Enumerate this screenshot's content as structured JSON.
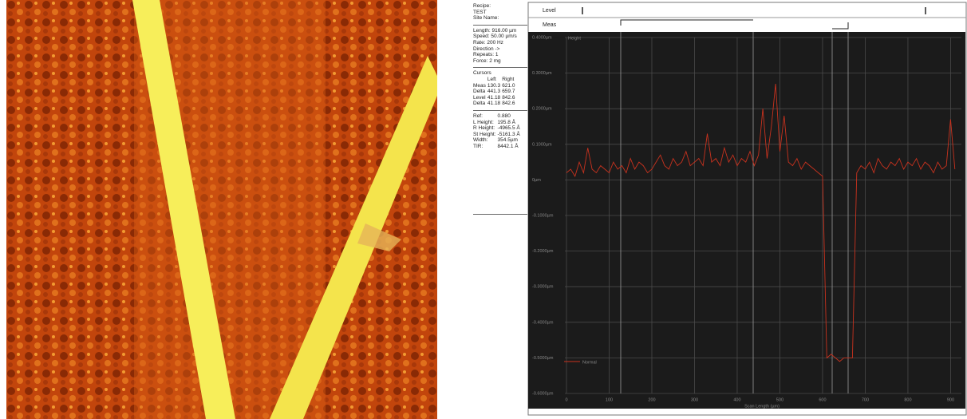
{
  "sidebar": {
    "recipe": [
      "Recipe:",
      "TEST",
      "Site Name:"
    ],
    "scan": [
      "Length: 916.00 µm",
      "Speed: 50.00 µm/s",
      "Rate: 200 Hz",
      "Direction ->",
      "Repeats: 1",
      "Force: 2 mg"
    ],
    "cursors": {
      "title": "Cursors",
      "header": [
        "Left",
        "Right"
      ],
      "rows": [
        [
          "Meas",
          "130.3",
          "621.0"
        ],
        [
          "Delta",
          "441.3",
          "659.7"
        ],
        [
          "Level",
          "41.18",
          "842.6"
        ],
        [
          "Delta",
          "41.18",
          "842.6"
        ]
      ]
    },
    "results": [
      [
        "Ref:",
        "0.880"
      ],
      [
        "L Height:",
        "195.8 Å"
      ],
      [
        "R Height:",
        "-4965.5 Å"
      ],
      [
        "St Height:",
        "-5161.3 Å"
      ],
      [
        "Width:",
        "354.5µm"
      ],
      [
        "TIR:",
        "8442.1 Å"
      ]
    ]
  },
  "header": {
    "level": "Level",
    "meas": "Meas"
  },
  "chart_data": {
    "type": "line",
    "y_label": "Height",
    "x_label": "Scan Length (µm)",
    "xlim": [
      0,
      916
    ],
    "xticks": [
      0,
      100,
      200,
      300,
      400,
      500,
      600,
      700,
      800,
      900
    ],
    "ylim": [
      -0.6,
      0.4
    ],
    "yticks": [
      {
        "value": 0.4,
        "label": "0.4000µm"
      },
      {
        "value": 0.3,
        "label": "0.3000µm"
      },
      {
        "value": 0.2,
        "label": "0.2000µm"
      },
      {
        "value": 0.1,
        "label": "0.1000µm"
      },
      {
        "value": 0,
        "label": "0µm"
      },
      {
        "value": -0.1,
        "label": "-0.1000µm"
      },
      {
        "value": -0.2,
        "label": "-0.2000µm"
      },
      {
        "value": -0.3,
        "label": "-0.3000µm"
      },
      {
        "value": -0.4,
        "label": "-0.4000µm"
      },
      {
        "value": -0.5,
        "label": "-0.5000µm"
      },
      {
        "value": -0.6,
        "label": "-0.6000µm"
      }
    ],
    "grid": true,
    "x": [
      0,
      10,
      20,
      30,
      40,
      50,
      60,
      70,
      80,
      90,
      100,
      110,
      120,
      130,
      140,
      150,
      160,
      170,
      180,
      190,
      200,
      210,
      220,
      230,
      240,
      250,
      260,
      270,
      280,
      290,
      300,
      310,
      320,
      330,
      340,
      350,
      360,
      370,
      380,
      390,
      400,
      410,
      420,
      430,
      440,
      450,
      460,
      470,
      480,
      490,
      500,
      510,
      520,
      530,
      540,
      550,
      560,
      570,
      580,
      590,
      600,
      610,
      620,
      630,
      640,
      650,
      660,
      670,
      680,
      690,
      700,
      710,
      720,
      730,
      740,
      750,
      760,
      770,
      780,
      790,
      800,
      810,
      820,
      830,
      840,
      850,
      860,
      870,
      880,
      890,
      900,
      910
    ],
    "series": [
      {
        "name": "Normal",
        "color": "#c8321e",
        "values": [
          0.02,
          0.03,
          0.01,
          0.05,
          0.02,
          0.09,
          0.03,
          0.02,
          0.04,
          0.03,
          0.02,
          0.05,
          0.03,
          0.04,
          0.02,
          0.06,
          0.03,
          0.05,
          0.04,
          0.02,
          0.03,
          0.05,
          0.07,
          0.04,
          0.03,
          0.06,
          0.04,
          0.05,
          0.08,
          0.04,
          0.05,
          0.06,
          0.04,
          0.13,
          0.05,
          0.06,
          0.04,
          0.09,
          0.05,
          0.07,
          0.04,
          0.06,
          0.05,
          0.08,
          0.04,
          0.07,
          0.2,
          0.06,
          0.15,
          0.27,
          0.08,
          0.18,
          0.05,
          0.04,
          0.06,
          0.03,
          0.05,
          0.04,
          0.03,
          0.02,
          0.01,
          -0.5,
          -0.49,
          -0.5,
          -0.51,
          -0.5,
          -0.5,
          -0.5,
          0.02,
          0.04,
          0.03,
          0.05,
          0.02,
          0.06,
          0.04,
          0.03,
          0.05,
          0.04,
          0.06,
          0.03,
          0.05,
          0.04,
          0.06,
          0.03,
          0.05,
          0.04,
          0.02,
          0.05,
          0.03,
          0.04,
          0.17,
          0.03
        ]
      }
    ]
  }
}
